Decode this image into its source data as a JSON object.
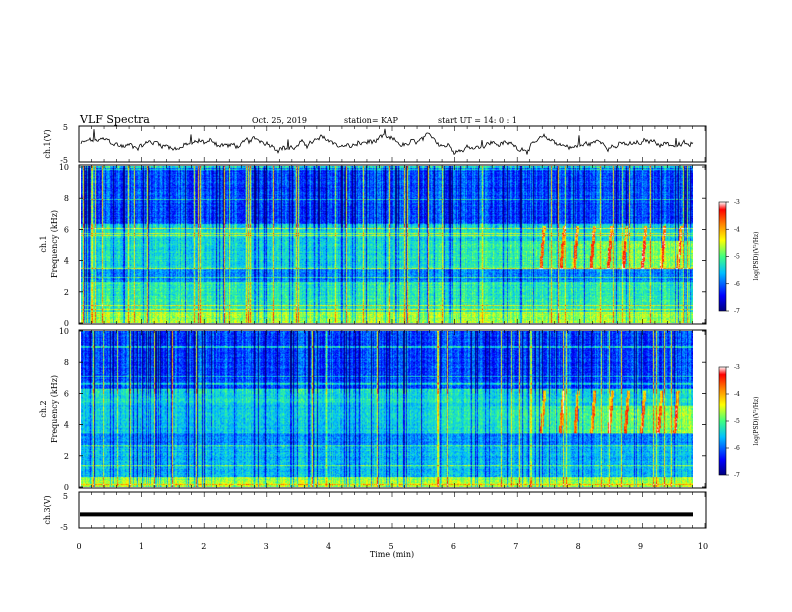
{
  "header": {
    "title": "VLF Spectra",
    "date": "Oct. 25, 2019",
    "station": "station= KAP",
    "start_time": "start  UT =  14: 0  : 1"
  },
  "chart_data": [
    {
      "type": "line",
      "panel": "ch1-waveform",
      "ylabel": "ch.1(V)",
      "ylim": [
        -5,
        5
      ],
      "yticks": [
        "5",
        "-5"
      ],
      "xlim": [
        0,
        10
      ],
      "series": [
        {
          "description": "noisy waveform around 0 V",
          "color": "#000000"
        }
      ]
    },
    {
      "type": "heatmap",
      "panel": "ch1-spectrogram",
      "ylabel_top": "ch.1",
      "ylabel": "Frequency (kHz)",
      "ylim": [
        0,
        10
      ],
      "yticks": [
        "0",
        "2",
        "4",
        "6",
        "8",
        "10"
      ],
      "xlim": [
        0,
        10
      ],
      "colorbar": {
        "label": "log(PSD)(V²/Hz)",
        "range": [
          -7,
          -3
        ],
        "ticks": [
          "-3",
          "-4",
          "-5",
          "-6",
          "-7"
        ],
        "colors": [
          "#00007f",
          "#0000ff",
          "#00bfff",
          "#40ff80",
          "#ffff00",
          "#ff8000",
          "#ff0000",
          "#ffffff"
        ]
      }
    },
    {
      "type": "heatmap",
      "panel": "ch2-spectrogram",
      "ylabel_top": "ch.2",
      "ylabel": "Frequency (kHz)",
      "ylim": [
        0,
        10
      ],
      "yticks": [
        "0",
        "2",
        "4",
        "6",
        "8",
        "10"
      ],
      "xlim": [
        0,
        10
      ],
      "colorbar": {
        "label": "log(PSD)(V²/Hz)",
        "range": [
          -7,
          -3
        ],
        "ticks": [
          "-3",
          "-4",
          "-5",
          "-6",
          "-7"
        ]
      }
    },
    {
      "type": "line",
      "panel": "ch3-waveform",
      "ylabel": "ch.3(V)",
      "ylim": [
        -5,
        5
      ],
      "yticks": [
        "5",
        "-5"
      ],
      "xlim": [
        0,
        10
      ],
      "xlabel": "Time (min)",
      "xticks": [
        "0",
        "1",
        "2",
        "3",
        "4",
        "5",
        "6",
        "7",
        "8",
        "9",
        "10"
      ],
      "series": [
        {
          "description": "flat thick line near -1 V",
          "value": -1.2,
          "color": "#000000"
        }
      ]
    }
  ]
}
